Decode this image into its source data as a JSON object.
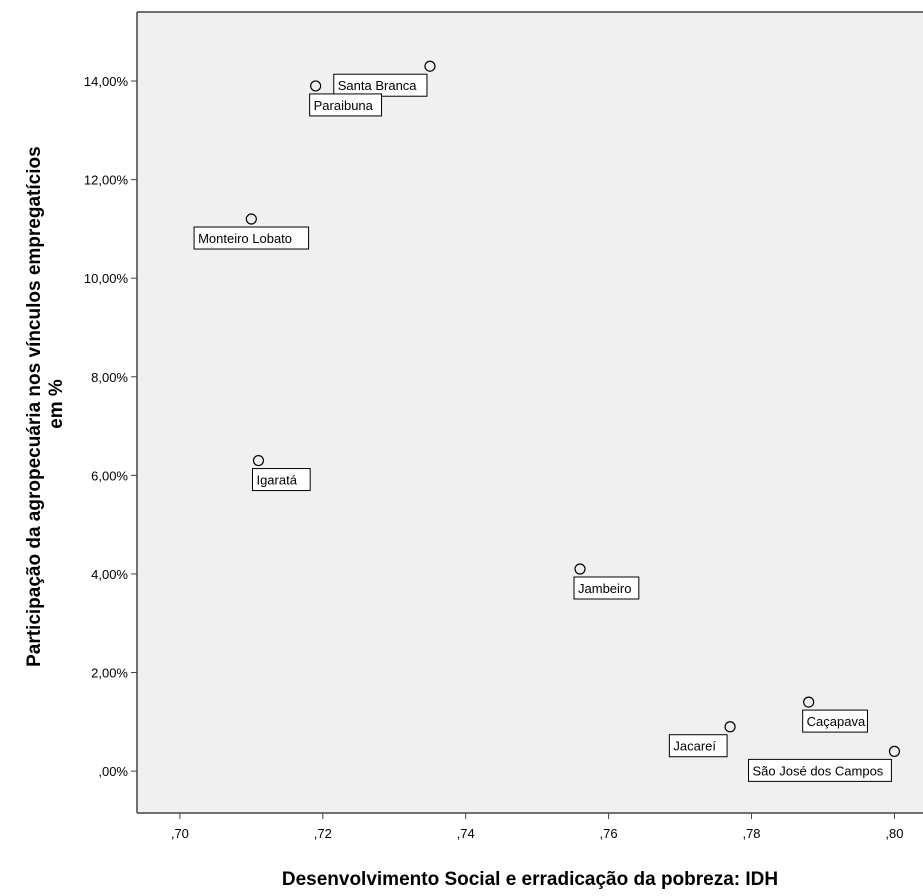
{
  "chart_data": {
    "type": "scatter",
    "title": "",
    "xlabel": "Desenvolvimento Social e erradicação da pobreza: IDH",
    "ylabel_lines": [
      "Participação da agropecuária nos vínculos empregatícios",
      "em %"
    ],
    "xlim": [
      0.694,
      0.804
    ],
    "ylim": [
      -0.85,
      15.4
    ],
    "x_ticks": [
      {
        "value": 0.7,
        "label": ",70"
      },
      {
        "value": 0.72,
        "label": ",72"
      },
      {
        "value": 0.74,
        "label": ",74"
      },
      {
        "value": 0.76,
        "label": ",76"
      },
      {
        "value": 0.78,
        "label": ",78"
      },
      {
        "value": 0.8,
        "label": ",80"
      }
    ],
    "y_ticks": [
      {
        "value": 0,
        "label": ",00%"
      },
      {
        "value": 2,
        "label": "2,00%"
      },
      {
        "value": 4,
        "label": "4,00%"
      },
      {
        "value": 6,
        "label": "6,00%"
      },
      {
        "value": 8,
        "label": "8,00%"
      },
      {
        "value": 10,
        "label": "10,00%"
      },
      {
        "value": 12,
        "label": "12,00%"
      },
      {
        "value": 14,
        "label": "14,00%"
      }
    ],
    "grid": false,
    "colors": {
      "plot_background": "#f0f0f0",
      "marker_fill": "#f0f0f0",
      "marker_stroke": "#000000",
      "axis": "#444444",
      "label_box": "#ffffff"
    },
    "points": [
      {
        "name": "Santa Branca",
        "x": 0.735,
        "y": 14.3,
        "label_pos": "below-left"
      },
      {
        "name": "Paraibuna",
        "x": 0.719,
        "y": 13.9,
        "label_pos": "below-right"
      },
      {
        "name": "Monteiro Lobato",
        "x": 0.71,
        "y": 11.2,
        "label_pos": "below"
      },
      {
        "name": "Igaratá",
        "x": 0.711,
        "y": 6.3,
        "label_pos": "below-right"
      },
      {
        "name": "Jambeiro",
        "x": 0.756,
        "y": 4.1,
        "label_pos": "below-right"
      },
      {
        "name": "Caçapava",
        "x": 0.788,
        "y": 1.4,
        "label_pos": "below-right"
      },
      {
        "name": "Jacareí",
        "x": 0.777,
        "y": 0.9,
        "label_pos": "below-left"
      },
      {
        "name": "São José dos Campos",
        "x": 0.8,
        "y": 0.4,
        "label_pos": "below-left"
      }
    ]
  }
}
